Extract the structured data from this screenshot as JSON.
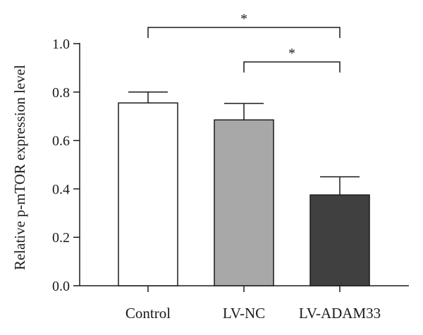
{
  "chart_data": {
    "type": "bar",
    "title": "",
    "xlabel": "",
    "ylabel": "Relative p-mTOR expression level",
    "ylim": [
      0,
      1.0
    ],
    "yticks": [
      "0.0",
      "0.2",
      "0.4",
      "0.6",
      "0.8",
      "1.0"
    ],
    "categories": [
      "Control",
      "LV-NC",
      "LV-ADAM33"
    ],
    "values": [
      0.755,
      0.685,
      0.375
    ],
    "errors": [
      0.045,
      0.068,
      0.075
    ],
    "bar_colors": [
      "#ffffff",
      "#a8a8a8",
      "#404040"
    ],
    "grid": false,
    "significance": [
      {
        "from": 0,
        "to": 2,
        "label": "*"
      },
      {
        "from": 1,
        "to": 2,
        "label": "*"
      }
    ]
  }
}
